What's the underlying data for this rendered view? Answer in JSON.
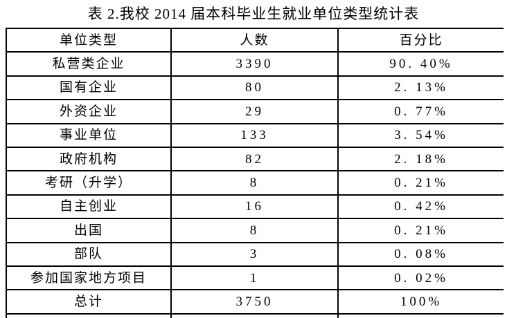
{
  "caption": "表 2.我校 2014 届本科毕业生就业单位类型统计表",
  "table": {
    "headers": [
      "单位类型",
      "人数",
      "百分比"
    ],
    "rows": [
      {
        "type": "私营类企业",
        "count": "3390",
        "percent": "90. 40%"
      },
      {
        "type": "国有企业",
        "count": "80",
        "percent": "2. 13%"
      },
      {
        "type": "外资企业",
        "count": "29",
        "percent": "0. 77%"
      },
      {
        "type": "事业单位",
        "count": "133",
        "percent": "3. 54%"
      },
      {
        "type": "政府机构",
        "count": "82",
        "percent": "2. 18%"
      },
      {
        "type": "考研（升学）",
        "count": "8",
        "percent": "0. 21%"
      },
      {
        "type": "自主创业",
        "count": "16",
        "percent": "0. 42%"
      },
      {
        "type": "出国",
        "count": "8",
        "percent": "0. 21%"
      },
      {
        "type": "部队",
        "count": "3",
        "percent": "0. 08%"
      },
      {
        "type": "参加国家地方项目",
        "count": "1",
        "percent": "0. 02%"
      },
      {
        "type": "总计",
        "count": "3750",
        "percent": "100%"
      }
    ]
  },
  "colors": {
    "border": "#000000",
    "text": "#000000",
    "background": "#ffffff"
  }
}
